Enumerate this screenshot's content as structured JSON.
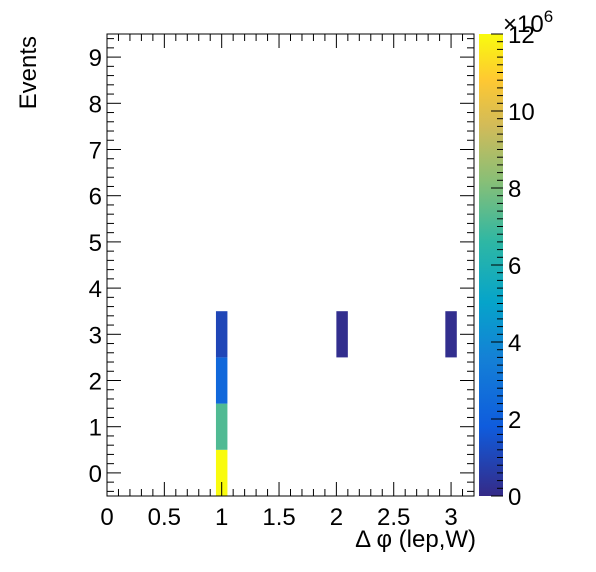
{
  "chart_data": {
    "type": "heatmap",
    "xlabel": "Δ φ (lep,W)",
    "ylabel": "Events",
    "xlim": [
      0,
      3.2
    ],
    "ylim": [
      -0.5,
      9.5
    ],
    "x_ticks": [
      "0",
      "0.5",
      "1",
      "1.5",
      "2",
      "2.5",
      "3"
    ],
    "y_ticks": [
      "0",
      "1",
      "2",
      "3",
      "4",
      "5",
      "6",
      "7",
      "8",
      "9"
    ],
    "bin_width": 0.1,
    "cells": [
      {
        "x0": 0.95,
        "x1": 1.05,
        "y0": -0.5,
        "y1": 0.5,
        "value": 12000000
      },
      {
        "x0": 0.95,
        "x1": 1.05,
        "y0": 0.5,
        "y1": 1.5,
        "value": 7200000
      },
      {
        "x0": 0.95,
        "x1": 1.05,
        "y0": 1.5,
        "y1": 2.5,
        "value": 2400000
      },
      {
        "x0": 0.95,
        "x1": 1.05,
        "y0": 2.5,
        "y1": 3.5,
        "value": 1000000
      },
      {
        "x0": 2.0,
        "x1": 2.1,
        "y0": 2.5,
        "y1": 3.5,
        "value": 150000
      },
      {
        "x0": 2.95,
        "x1": 3.05,
        "y0": 2.5,
        "y1": 3.5,
        "value": 150000
      }
    ],
    "colorbar": {
      "min": 0,
      "max": 12000000,
      "tick_labels": [
        "0",
        "2",
        "4",
        "6",
        "8",
        "10",
        "12"
      ],
      "tick_values": [
        0,
        2,
        4,
        6,
        8,
        10,
        12
      ],
      "exponent_base": "×10",
      "exponent_power": "6"
    },
    "grid": false,
    "legend": "none"
  }
}
